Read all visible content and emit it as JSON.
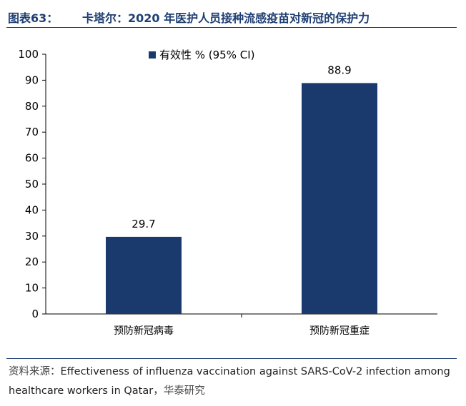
{
  "header": {
    "figure_label": "图表63：",
    "title": "卡塔尔：2020 年医护人员接种流感疫苗对新冠的保护力"
  },
  "chart_data": {
    "type": "bar",
    "categories": [
      "预防新冠病毒",
      "预防新冠重症"
    ],
    "series": [
      {
        "name": "有效性 % (95% CI)",
        "values": [
          29.7,
          88.9
        ],
        "color": "#1a3a6e"
      }
    ],
    "data_labels": [
      "29.7",
      "88.9"
    ],
    "yticks": [
      0,
      10,
      20,
      30,
      40,
      50,
      60,
      70,
      80,
      90,
      100
    ],
    "ylim": [
      0,
      100
    ],
    "grid": false,
    "legend_position": "top-center",
    "title": "",
    "xlabel": "",
    "ylabel": ""
  },
  "source": {
    "label": "资料来源：",
    "text": "Effectiveness of influenza vaccination against SARS-CoV-2 infection among healthcare workers in Qatar，",
    "org": "华泰研究"
  }
}
